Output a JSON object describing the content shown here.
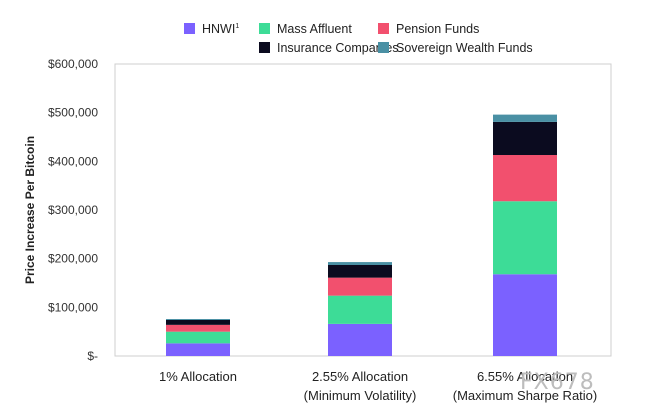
{
  "chart_data": {
    "type": "bar",
    "stacked": true,
    "ylabel": "Price Increase Per Bitcoin",
    "xlabel": "",
    "ylim": [
      0,
      600000
    ],
    "yticks": [
      0,
      100000,
      200000,
      300000,
      400000,
      500000,
      600000
    ],
    "ytick_labels": [
      "$-",
      "$100,000",
      "$200,000",
      "$300,000",
      "$400,000",
      "$500,000",
      "$600,000"
    ],
    "categories": [
      [
        "1% Allocation"
      ],
      [
        "2.55% Allocation",
        "(Minimum Volatility)"
      ],
      [
        "6.55% Allocation",
        "(Maximum Sharpe Ratio)"
      ]
    ],
    "series": [
      {
        "name": "HNWI",
        "color": "#7b61ff",
        "values": [
          26000,
          66000,
          168000
        ]
      },
      {
        "name": "Mass Affluent",
        "color": "#3ddc97",
        "values": [
          24000,
          58000,
          150000
        ]
      },
      {
        "name": "Pension Funds",
        "color": "#f2506e",
        "values": [
          14000,
          37000,
          95000
        ]
      },
      {
        "name": "Insurance Companies",
        "color": "#0b0b1f",
        "values": [
          10000,
          26000,
          68000
        ]
      },
      {
        "name": "Sovereign Wealth Funds",
        "color": "#4a90a4",
        "values": [
          2000,
          6000,
          15000
        ]
      }
    ],
    "legend": {
      "position": "top",
      "HNWI_suffix": "1"
    },
    "grid": false
  },
  "watermark": "FX678"
}
